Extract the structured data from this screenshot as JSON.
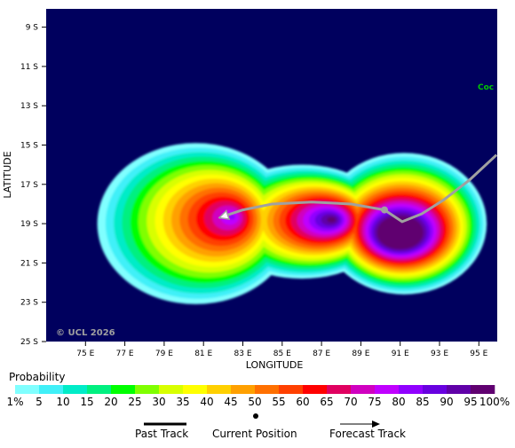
{
  "map": {
    "y_axis_title": "LATITUDE",
    "x_axis_title": "LONGITUDE",
    "lat_ticks": [
      "9 S",
      "11 S",
      "13 S",
      "15 S",
      "17 S",
      "19 S",
      "21 S",
      "23 S",
      "25 S"
    ],
    "lon_ticks": [
      "75 E",
      "77 E",
      "79 E",
      "81 E",
      "83 E",
      "85 E",
      "87 E",
      "89 E",
      "91 E",
      "93 E",
      "95 E"
    ],
    "copyright": "© UCL 2026",
    "place_label": "Coc",
    "background_color": "#00005e",
    "land_label_color": "#00c800",
    "track_color": "#a0a0a0"
  },
  "legend": {
    "title": "Probability",
    "labels": [
      "1%",
      "5",
      "10",
      "15",
      "20",
      "25",
      "30",
      "35",
      "40",
      "45",
      "50",
      "55",
      "60",
      "65",
      "70",
      "75",
      "80",
      "85",
      "90",
      "95",
      "100%"
    ],
    "colors": [
      "#80ffff",
      "#40f0f8",
      "#00ecc8",
      "#00f080",
      "#00ff00",
      "#80ff00",
      "#d8ff00",
      "#ffff00",
      "#ffd000",
      "#ffa000",
      "#ff7000",
      "#ff4000",
      "#ff0000",
      "#e00060",
      "#d000c0",
      "#c000ff",
      "#9000ff",
      "#6800e0",
      "#6000a8",
      "#600070"
    ]
  },
  "key": {
    "past_track": "Past Track",
    "current_position": "Current Position",
    "forecast_track": "Forecast Track"
  },
  "track": {
    "forecast": [
      [
        95.9,
        15.5
      ],
      [
        94.5,
        16.8
      ],
      [
        93.2,
        17.8
      ],
      [
        92.1,
        18.5
      ],
      [
        91.1,
        18.9
      ],
      [
        90.2,
        18.3
      ],
      [
        88.5,
        18.0
      ],
      [
        86.5,
        17.9
      ],
      [
        84.5,
        18.0
      ],
      [
        83.0,
        18.3
      ],
      [
        81.8,
        18.7
      ]
    ],
    "current": [
      90.2,
      18.3
    ]
  }
}
